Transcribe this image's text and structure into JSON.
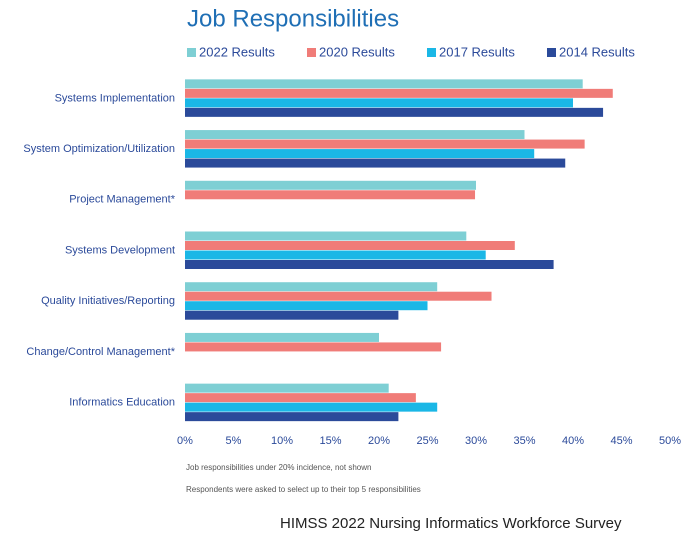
{
  "chart_data": {
    "type": "hbar",
    "title": "Job Responsibilities",
    "categories": [
      "Systems Implementation",
      "System Optimization/Utilization",
      "Project Management*",
      "Systems Development",
      "Quality Initiatives/Reporting",
      "Change/Control Management*",
      "Informatics Education"
    ],
    "series": [
      {
        "name": "2022 Results",
        "color": "#7ecfd4",
        "values": [
          41,
          35,
          30,
          29,
          26,
          20,
          21
        ]
      },
      {
        "name": "2020 Results",
        "color": "#f07c78",
        "values": [
          44.1,
          41.2,
          29.9,
          34,
          31.6,
          26.4,
          23.8
        ]
      },
      {
        "name": "2017 Results",
        "color": "#1ab7e6",
        "values": [
          40,
          36,
          null,
          31,
          25,
          null,
          26
        ]
      },
      {
        "name": "2014 Results",
        "color": "#2b4a9a",
        "values": [
          43.1,
          39.2,
          null,
          38,
          22,
          null,
          22
        ]
      }
    ],
    "xlim": [
      0,
      50
    ],
    "xticks": [
      {
        "value": 0,
        "label": "0%"
      },
      {
        "value": 5,
        "label": "5%"
      },
      {
        "value": 10,
        "label": "10%"
      },
      {
        "value": 15,
        "label": "15%"
      },
      {
        "value": 20,
        "label": "20%"
      },
      {
        "value": 25,
        "label": "25%"
      },
      {
        "value": 30,
        "label": "30%"
      },
      {
        "value": 35,
        "label": "35%"
      },
      {
        "value": 40,
        "label": "40%"
      },
      {
        "value": 45,
        "label": "45%"
      },
      {
        "value": 50,
        "label": "50%"
      }
    ],
    "grid": false,
    "notes": [
      "Job responsibilities under 20% incidence, not shown",
      "Respondents were asked to select up to their top 5 responsibilities"
    ],
    "footer": "HIMSS 2022 Nursing Informatics Workforce Survey"
  }
}
